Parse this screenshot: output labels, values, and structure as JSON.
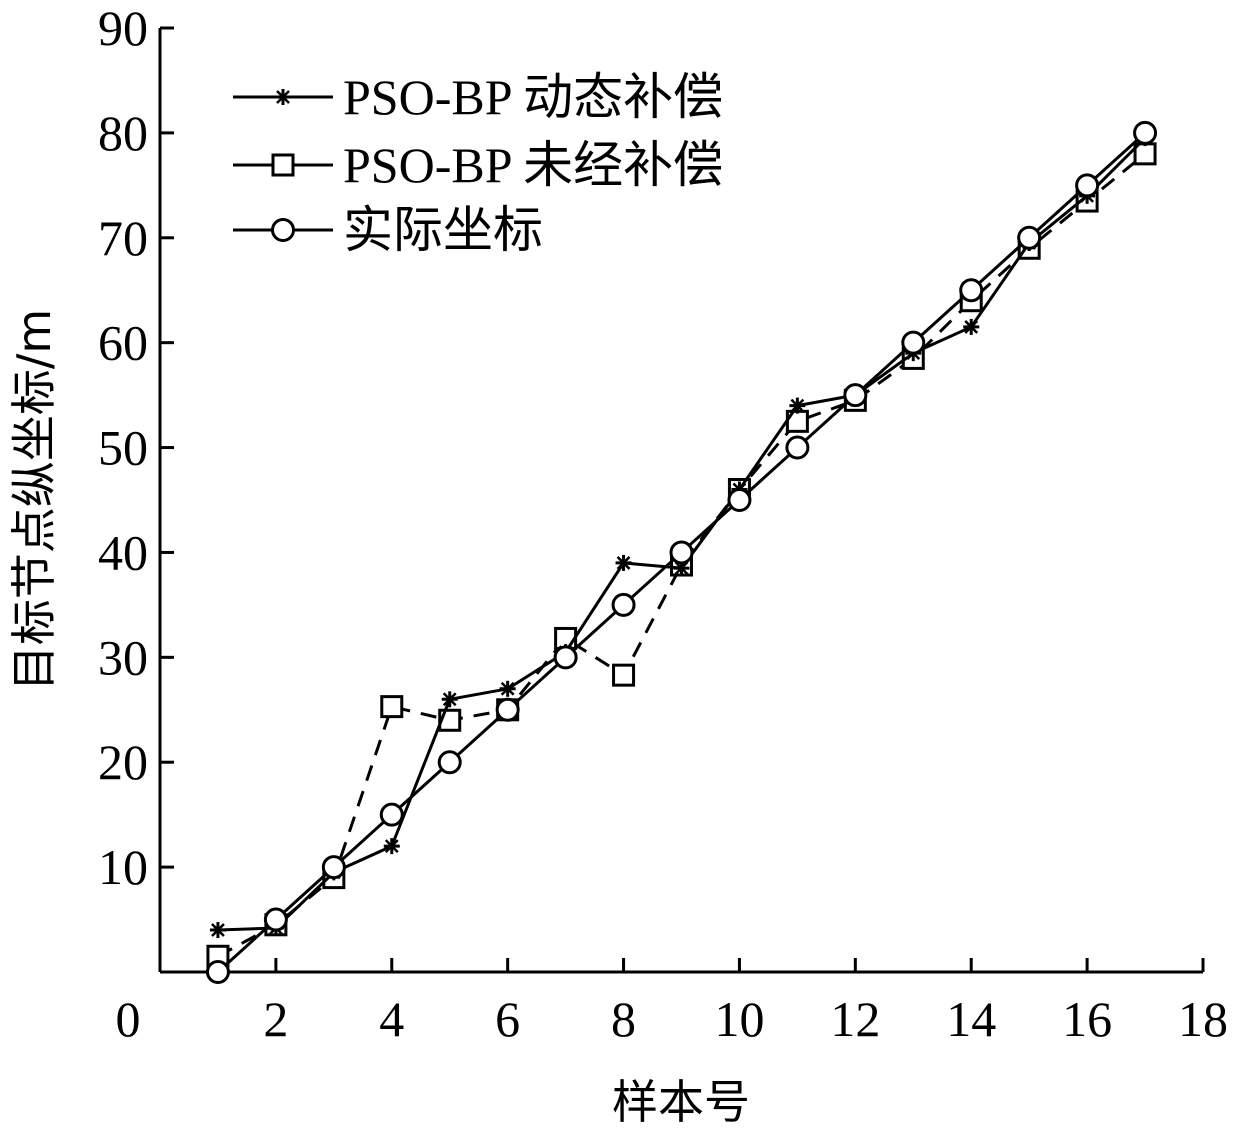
{
  "chart_data": {
    "type": "line",
    "title": "",
    "xlabel": "样本号",
    "ylabel": "目标节点纵坐标/m",
    "xlim": [
      0,
      18
    ],
    "ylim": [
      0,
      90
    ],
    "xticks": [
      0,
      2,
      4,
      6,
      8,
      10,
      12,
      14,
      16,
      18
    ],
    "yticks": [
      10,
      20,
      30,
      40,
      50,
      60,
      70,
      80,
      90
    ],
    "xtick_labels": [
      "0",
      "2",
      "4",
      "6",
      "8",
      "10",
      "12",
      "14",
      "16",
      "18"
    ],
    "ytick_labels": [
      "10",
      "20",
      "30",
      "40",
      "50",
      "60",
      "70",
      "80",
      "90"
    ],
    "grid": false,
    "legend_position": "top-left",
    "x": [
      1,
      2,
      3,
      4,
      5,
      6,
      7,
      8,
      9,
      10,
      11,
      12,
      13,
      14,
      15,
      16,
      17
    ],
    "series": [
      {
        "name": "PSO-BP 动态补偿",
        "marker": "star",
        "line_style": "solid",
        "values": [
          4,
          4.2,
          9.5,
          12,
          26,
          27,
          30.5,
          39,
          38.5,
          46,
          54,
          55,
          59,
          61.5,
          69.5,
          74,
          79.5
        ]
      },
      {
        "name": "PSO-BP 未经补偿",
        "marker": "square",
        "line_style": "dashed",
        "values": [
          1.5,
          4.5,
          9,
          25.3,
          24,
          25,
          31.8,
          28.3,
          38.8,
          46,
          52.5,
          54.5,
          58.5,
          64,
          69,
          73.5,
          78
        ]
      },
      {
        "name": "实际坐标",
        "marker": "circle",
        "line_style": "solid",
        "values": [
          0,
          5,
          10,
          15,
          20,
          25,
          30,
          35,
          40,
          45,
          50,
          55,
          60,
          65,
          70,
          75,
          80
        ]
      }
    ]
  }
}
